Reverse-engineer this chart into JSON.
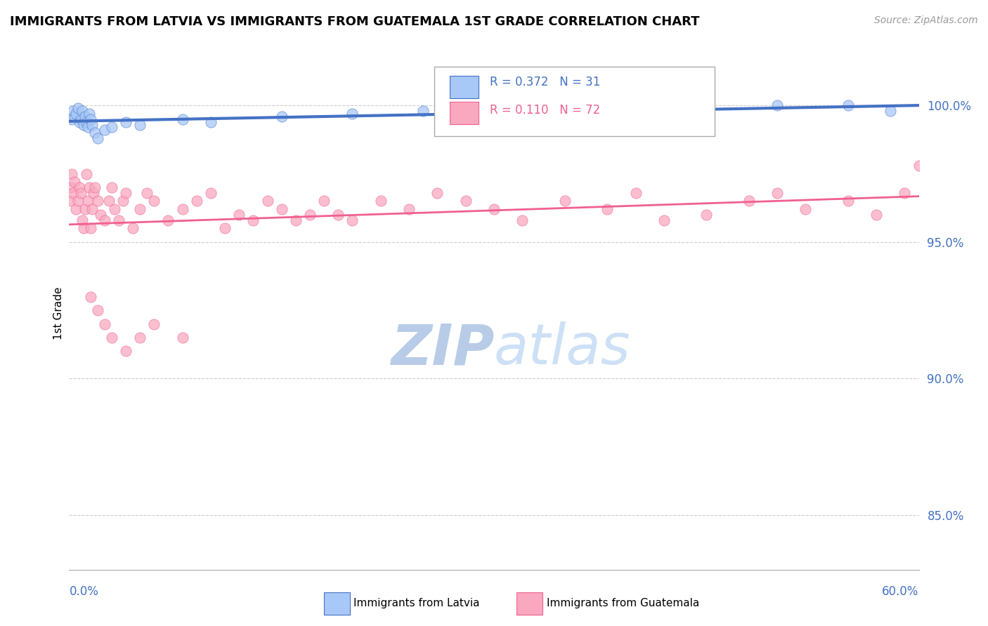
{
  "title": "IMMIGRANTS FROM LATVIA VS IMMIGRANTS FROM GUATEMALA 1ST GRADE CORRELATION CHART",
  "source_text": "Source: ZipAtlas.com",
  "ylabel": "1st Grade",
  "y_ticks": [
    85.0,
    90.0,
    95.0,
    100.0
  ],
  "y_tick_labels": [
    "85.0%",
    "90.0%",
    "95.0%",
    "100.0%"
  ],
  "x_min": 0.0,
  "x_max": 60.0,
  "y_min": 83.0,
  "y_max": 101.8,
  "legend_r1": "R = 0.372",
  "legend_n1": "N = 31",
  "legend_r2": "R = 0.110",
  "legend_n2": "N = 72",
  "color_latvia": "#a8c8f8",
  "color_guatemala": "#f9a8c0",
  "trendline_latvia": "#4472c4",
  "trendline_guatemala": "#f06090",
  "watermark": "ZIPatlas",
  "watermark_color": "#ccddf5",
  "latvia_x": [
    0.2,
    0.3,
    0.4,
    0.5,
    0.6,
    0.7,
    0.8,
    0.9,
    1.0,
    1.1,
    1.2,
    1.3,
    1.4,
    1.5,
    1.6,
    1.8,
    2.0,
    2.5,
    3.0,
    4.0,
    5.0,
    8.0,
    10.0,
    15.0,
    20.0,
    25.0,
    30.0,
    40.0,
    50.0,
    55.0,
    58.0
  ],
  "latvia_y": [
    99.5,
    99.8,
    99.6,
    99.7,
    99.9,
    99.4,
    99.5,
    99.8,
    99.3,
    99.6,
    99.4,
    99.2,
    99.7,
    99.5,
    99.3,
    99.0,
    98.8,
    99.1,
    99.2,
    99.4,
    99.3,
    99.5,
    99.4,
    99.6,
    99.7,
    99.8,
    99.7,
    99.9,
    100.0,
    100.0,
    99.8
  ],
  "guatemala_x": [
    0.1,
    0.15,
    0.2,
    0.3,
    0.4,
    0.5,
    0.6,
    0.7,
    0.8,
    0.9,
    1.0,
    1.1,
    1.2,
    1.3,
    1.4,
    1.5,
    1.6,
    1.7,
    1.8,
    2.0,
    2.2,
    2.5,
    2.8,
    3.0,
    3.2,
    3.5,
    3.8,
    4.0,
    4.5,
    5.0,
    5.5,
    6.0,
    7.0,
    8.0,
    9.0,
    10.0,
    11.0,
    12.0,
    13.0,
    14.0,
    15.0,
    16.0,
    17.0,
    18.0,
    19.0,
    20.0,
    22.0,
    24.0,
    26.0,
    28.0,
    30.0,
    32.0,
    35.0,
    38.0,
    40.0,
    42.0,
    45.0,
    48.0,
    50.0,
    52.0,
    55.0,
    57.0,
    59.0,
    60.0,
    1.5,
    2.0,
    2.5,
    3.0,
    4.0,
    5.0,
    6.0,
    8.0
  ],
  "guatemala_y": [
    96.5,
    97.0,
    97.5,
    96.8,
    97.2,
    96.2,
    96.5,
    97.0,
    96.8,
    95.8,
    95.5,
    96.2,
    97.5,
    96.5,
    97.0,
    95.5,
    96.2,
    96.8,
    97.0,
    96.5,
    96.0,
    95.8,
    96.5,
    97.0,
    96.2,
    95.8,
    96.5,
    96.8,
    95.5,
    96.2,
    96.8,
    96.5,
    95.8,
    96.2,
    96.5,
    96.8,
    95.5,
    96.0,
    95.8,
    96.5,
    96.2,
    95.8,
    96.0,
    96.5,
    96.0,
    95.8,
    96.5,
    96.2,
    96.8,
    96.5,
    96.2,
    95.8,
    96.5,
    96.2,
    96.8,
    95.8,
    96.0,
    96.5,
    96.8,
    96.2,
    96.5,
    96.0,
    96.8,
    97.8,
    93.0,
    92.5,
    92.0,
    91.5,
    91.0,
    91.5,
    92.0,
    91.5
  ]
}
